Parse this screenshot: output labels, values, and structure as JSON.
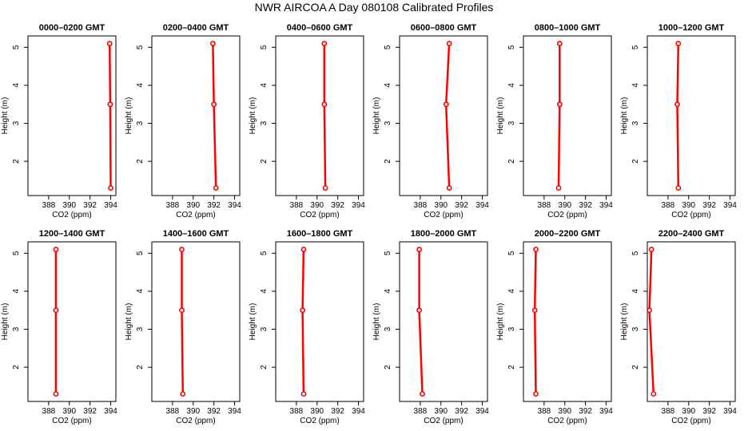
{
  "page_title": "NWR AIRCOA A  Day 080108  Calibrated Profiles",
  "colors": {
    "profile": "#ff0000",
    "frame": "#000000",
    "background": "#ffffff"
  },
  "chart_data": {
    "type": "line",
    "title": "NWR AIRCOA A  Day 080108  Calibrated Profiles",
    "xlabel": "CO2 (ppm)",
    "ylabel": "Height (m)",
    "xlim": [
      386,
      394.5
    ],
    "ylim": [
      1.1,
      5.3
    ],
    "xticks": [
      388,
      390,
      392,
      394
    ],
    "yticks": [
      2,
      3,
      4,
      5
    ],
    "heights": [
      1.3,
      3.5,
      5.1
    ],
    "panels": [
      {
        "title": "0000–0200 GMT",
        "co2": [
          394.0,
          393.95,
          393.9
        ]
      },
      {
        "title": "0200–0400 GMT",
        "co2": [
          392.2,
          392.0,
          391.9
        ]
      },
      {
        "title": "0400–0600 GMT",
        "co2": [
          390.8,
          390.7,
          390.7
        ]
      },
      {
        "title": "0600–0800 GMT",
        "co2": [
          390.8,
          390.5,
          390.8
        ]
      },
      {
        "title": "0800–1000 GMT",
        "co2": [
          389.4,
          389.5,
          389.5
        ]
      },
      {
        "title": "1000–1200 GMT",
        "co2": [
          389.0,
          388.9,
          389.0
        ]
      },
      {
        "title": "1200–1400 GMT",
        "co2": [
          388.7,
          388.7,
          388.7
        ]
      },
      {
        "title": "1400–1600 GMT",
        "co2": [
          389.0,
          388.9,
          388.9
        ]
      },
      {
        "title": "1600–1800 GMT",
        "co2": [
          388.7,
          388.6,
          388.7
        ]
      },
      {
        "title": "1800–2000 GMT",
        "co2": [
          388.2,
          387.9,
          387.9
        ]
      },
      {
        "title": "2000–2200 GMT",
        "co2": [
          387.2,
          387.1,
          387.2
        ]
      },
      {
        "title": "2200–2400 GMT",
        "co2": [
          386.6,
          386.2,
          386.4
        ]
      }
    ]
  }
}
